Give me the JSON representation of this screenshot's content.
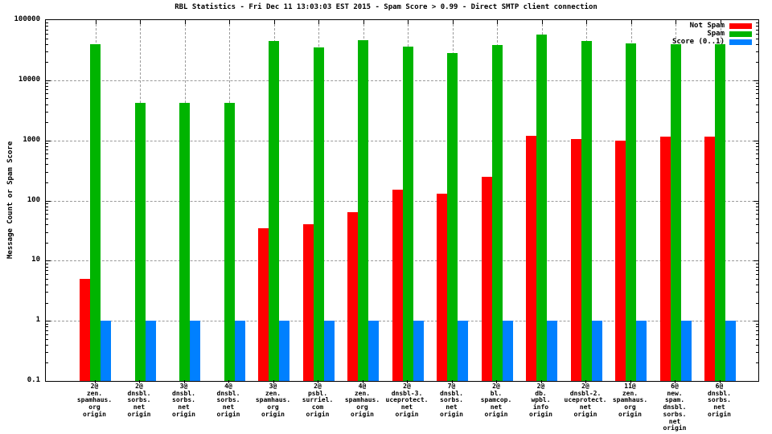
{
  "chart_data": {
    "type": "bar",
    "title": "RBL Statistics - Fri Dec 11 13:03:03 EST 2015 - Spam Score > 0.99 - Direct SMTP client connection",
    "ylabel": "Message Count or Spam Score",
    "yscale": "log",
    "ylim": [
      0.1,
      100000
    ],
    "ytick_labels": [
      "100000",
      "10000",
      "1000",
      "100",
      "10",
      "1",
      "0.1"
    ],
    "grid": true,
    "legend_position": "top-right-inside",
    "categories": [
      [
        "2@",
        "zen.",
        "spamhaus.",
        "org",
        "origin"
      ],
      [
        "2@",
        "dnsbl.",
        "sorbs.",
        "net",
        "origin"
      ],
      [
        "3@",
        "dnsbl.",
        "sorbs.",
        "net",
        "origin"
      ],
      [
        "4@",
        "dnsbl.",
        "sorbs.",
        "net",
        "origin"
      ],
      [
        "3@",
        "zen.",
        "spamhaus.",
        "org",
        "origin"
      ],
      [
        "2@",
        "psbl.",
        "surriel.",
        "com",
        "origin"
      ],
      [
        "4@",
        "zen.",
        "spamhaus.",
        "org",
        "origin"
      ],
      [
        "2@",
        "dnsbl-3.",
        "uceprotect.",
        "net",
        "origin"
      ],
      [
        "7@",
        "dnsbl.",
        "sorbs.",
        "net",
        "origin"
      ],
      [
        "2@",
        "bl.",
        "spamcop.",
        "net",
        "origin"
      ],
      [
        "2@",
        "db.",
        "wpbl.",
        "info",
        "origin"
      ],
      [
        "2@",
        "dnsbl-2.",
        "uceprotect.",
        "net",
        "origin"
      ],
      [
        "11@",
        "zen.",
        "spamhaus.",
        "org",
        "origin"
      ],
      [
        "6@",
        "new.",
        "spam.",
        "dnsbl.",
        "sorbs.",
        "net",
        "origin"
      ],
      [
        "6@",
        "dnsbl.",
        "sorbs.",
        "net",
        "origin"
      ]
    ],
    "series": [
      {
        "name": "Not Spam",
        "color": "#ff0000",
        "values": [
          5,
          null,
          null,
          null,
          35,
          40,
          65,
          150,
          130,
          250,
          1200,
          1050,
          1000,
          1150,
          1150
        ]
      },
      {
        "name": "Spam",
        "color": "#00b400",
        "values": [
          40000,
          4200,
          4200,
          4200,
          45000,
          35000,
          46000,
          36000,
          28000,
          39000,
          58000,
          45000,
          41000,
          40000,
          40000
        ]
      },
      {
        "name": "Score (0..1)",
        "color": "#0080ff",
        "values": [
          1,
          1,
          1,
          1,
          1,
          1,
          1,
          1,
          1,
          1,
          1,
          1,
          1,
          1,
          1
        ]
      }
    ]
  }
}
